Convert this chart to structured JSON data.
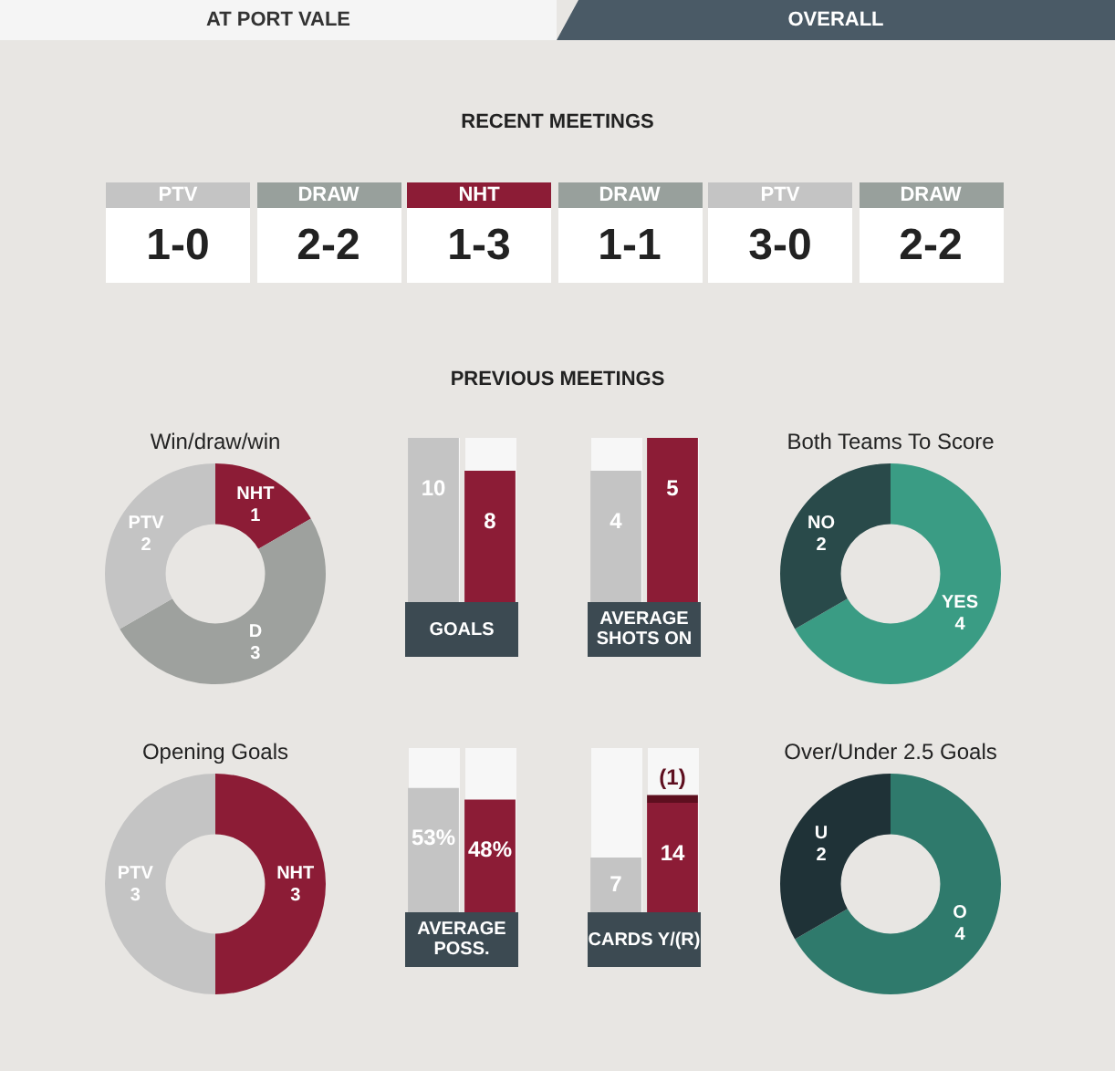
{
  "chart_data": [
    {
      "type": "other",
      "title": "RECENT MEETINGS",
      "categories": [
        "PTV",
        "DRAW",
        "NHT",
        "DRAW",
        "PTV",
        "DRAW"
      ],
      "value_labels": [
        "1-0",
        "2-2",
        "1-3",
        "1-1",
        "3-0",
        "2-2"
      ],
      "colors": [
        "#c4c4c4",
        "#98a09c",
        "#8c1c36",
        "#98a09c",
        "#c4c4c4",
        "#98a09c"
      ],
      "annotations": [
        "AT PORT VALE",
        "OVERALL",
        "PREVIOUS MEETINGS"
      ]
    },
    {
      "type": "donut",
      "title": "Win/draw/win",
      "categories": [
        "NHT",
        "D",
        "PTV"
      ],
      "values": [
        1,
        3,
        2
      ],
      "colors": [
        "#8c1c36",
        "#9ea19e",
        "#c4c4c4"
      ],
      "data_labels": true
    },
    {
      "type": "bar",
      "xlabel": "GOALS",
      "categories": [
        null,
        null
      ],
      "values": [
        10,
        8
      ],
      "colors": [
        "#c4c4c4",
        "#8c1c36"
      ],
      "ylim": [
        0,
        10
      ],
      "data_labels": true
    },
    {
      "type": "bar",
      "xlabel": "AVERAGE SHOTS ON",
      "categories": [
        null,
        null
      ],
      "values": [
        4,
        5
      ],
      "colors": [
        "#c4c4c4",
        "#8c1c36"
      ],
      "ylim": [
        0,
        5
      ],
      "data_labels": true
    },
    {
      "type": "donut",
      "title": "Both Teams To Score",
      "categories": [
        "YES",
        "NO"
      ],
      "values": [
        4,
        2
      ],
      "colors": [
        "#3a9c84",
        "#294a4a"
      ],
      "data_labels": true
    },
    {
      "type": "donut",
      "title": "Opening Goals",
      "categories": [
        "NHT",
        "PTV"
      ],
      "values": [
        3,
        3
      ],
      "colors": [
        "#8c1c36",
        "#c4c4c4"
      ],
      "data_labels": true
    },
    {
      "type": "bar",
      "xlabel": "AVERAGE POSS.",
      "categories": [
        null,
        null
      ],
      "values": [
        53,
        48
      ],
      "value_labels": [
        "53%",
        "48%"
      ],
      "colors": [
        "#c4c4c4",
        "#8c1c36"
      ],
      "ylim": [
        0,
        70
      ]
    },
    {
      "type": "bar",
      "xlabel": "CARDS Y/(R)",
      "categories": [
        null,
        null
      ],
      "stacked": true,
      "ylim": [
        0,
        21
      ],
      "series": [
        {
          "values": [
            7,
            14
          ],
          "colors": [
            "#c4c4c4",
            "#8c1c36"
          ],
          "value_labels": [
            "7",
            "14"
          ]
        },
        {
          "values": [
            null,
            1
          ],
          "color": "#5e0f1f",
          "value_labels": [
            null,
            "(1)"
          ]
        }
      ]
    },
    {
      "type": "donut",
      "title": "Over/Under 2.5 Goals",
      "categories": [
        "O",
        "U"
      ],
      "values": [
        4,
        2
      ],
      "colors": [
        "#2f7a6c",
        "#1f3237"
      ],
      "data_labels": true
    }
  ]
}
